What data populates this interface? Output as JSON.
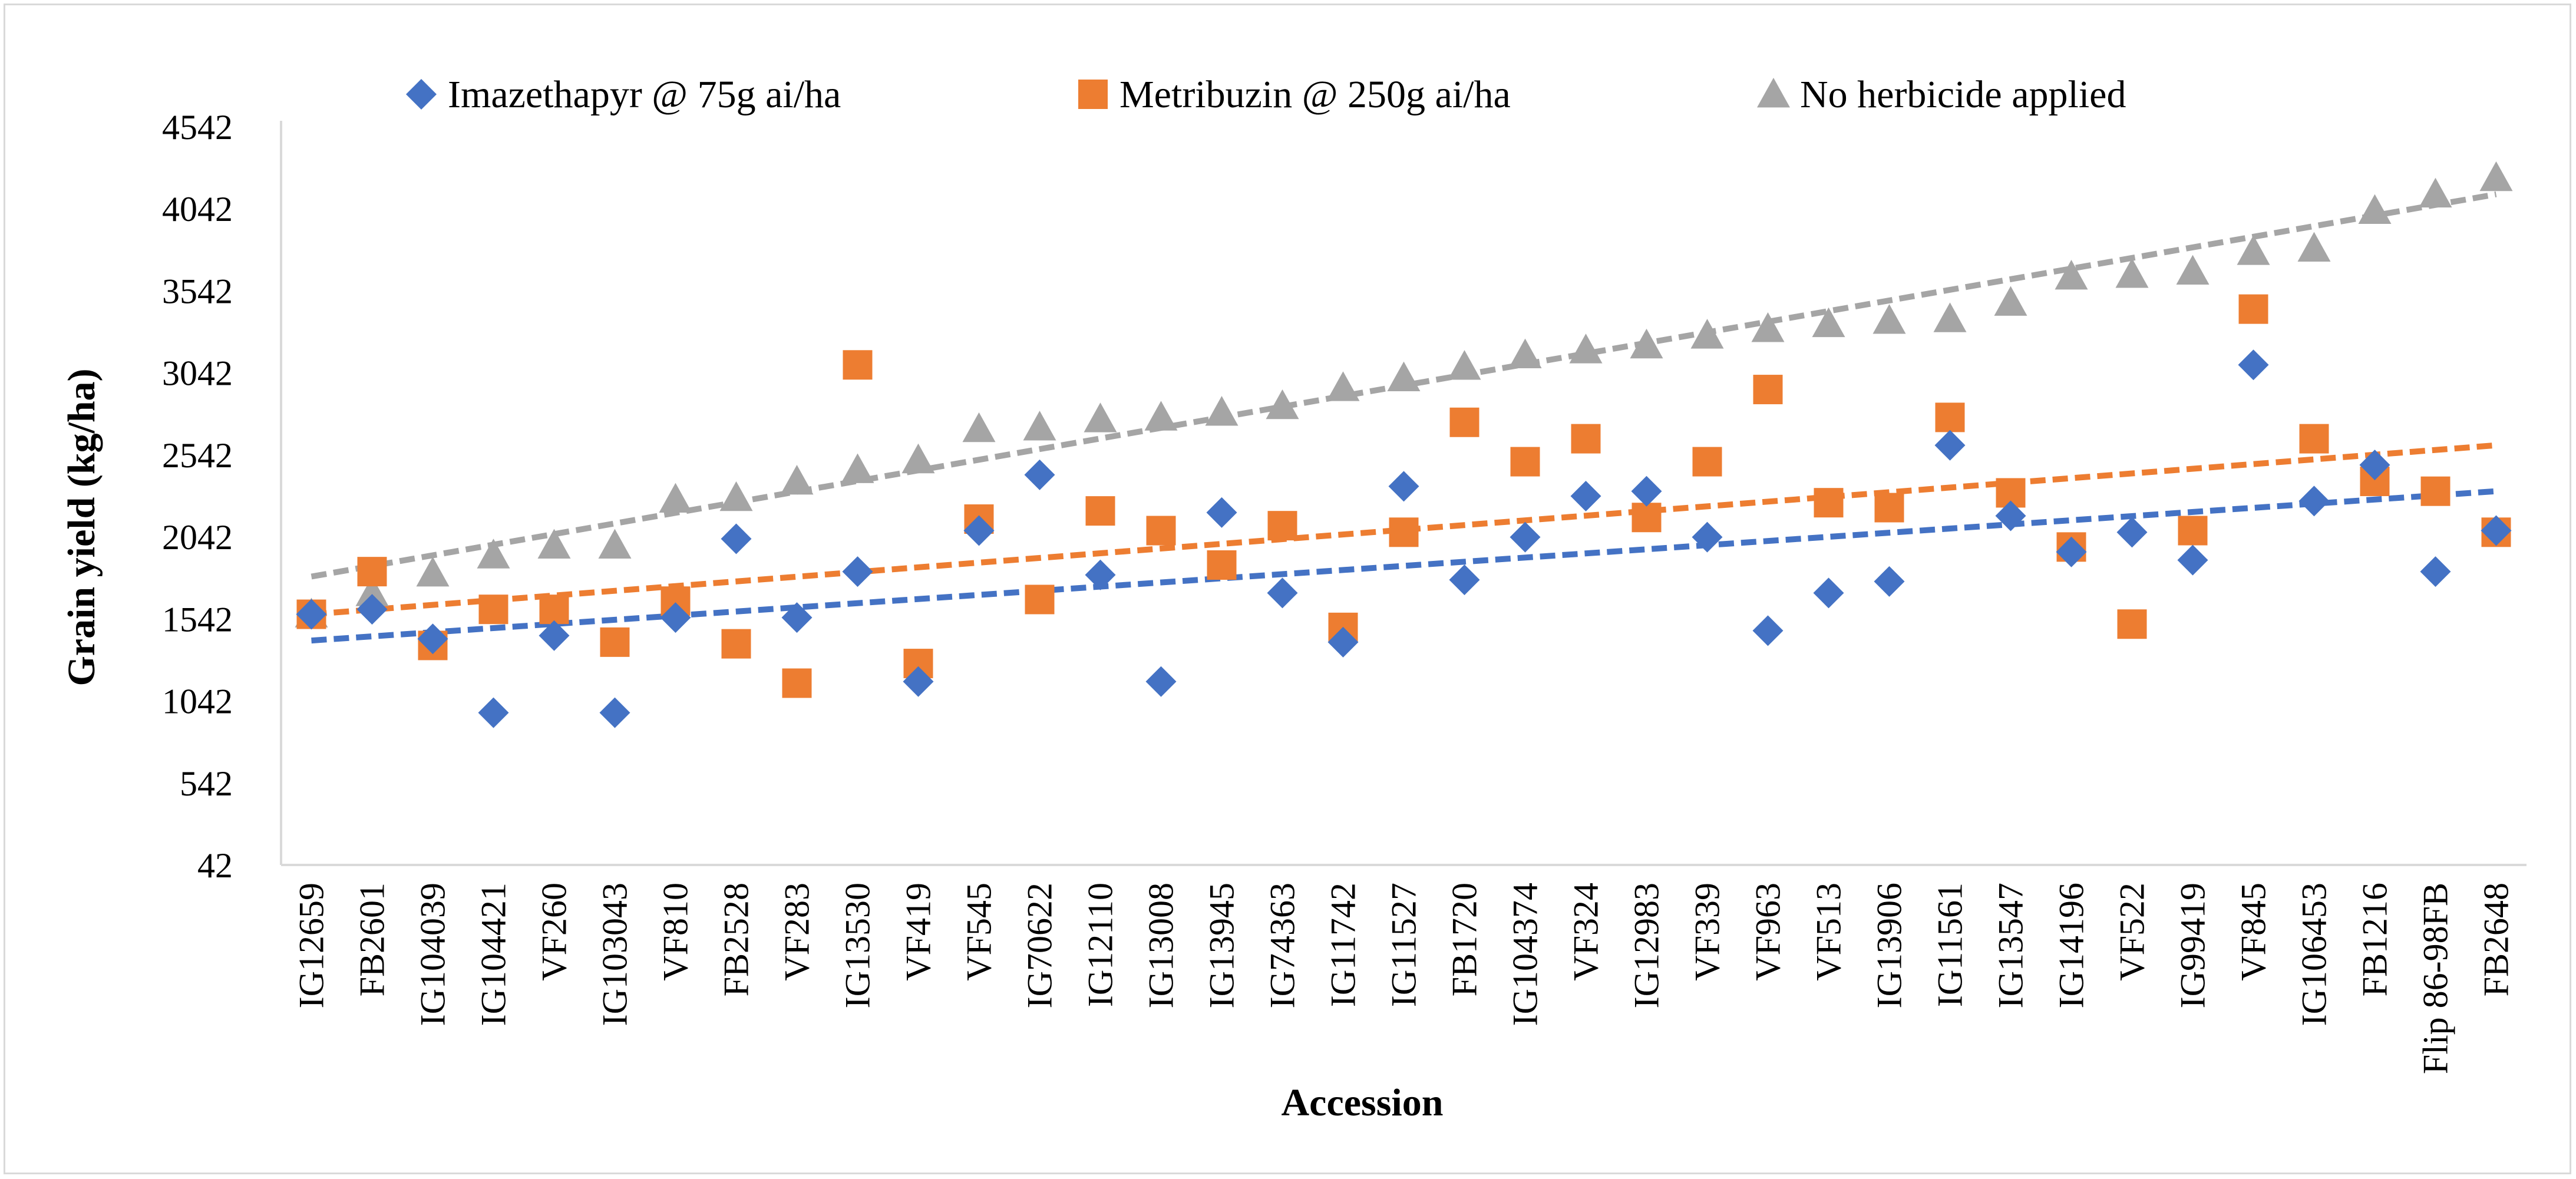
{
  "chart_data": {
    "type": "scatter",
    "title": "",
    "xlabel": "Accession",
    "ylabel": "Grain yield (kg/ha)",
    "ylim": [
      42,
      4542
    ],
    "yticks": [
      "42",
      "542",
      "1042",
      "1542",
      "2042",
      "2542",
      "3042",
      "3542",
      "4042",
      "4542"
    ],
    "grid": false,
    "legend_position": "top",
    "categories": [
      "IG12659",
      "FB2601",
      "IG104039",
      "IG104421",
      "VF260",
      "IG103043",
      "VF810",
      "FB2528",
      "VF283",
      "IG13530",
      "VF419",
      "VF545",
      "IG70622",
      "IG12110",
      "IG13008",
      "IG13945",
      "IG74363",
      "IG11742",
      "IG11527",
      "FB1720",
      "IG104374",
      "VF324",
      "IG12983",
      "VF339",
      "VF963",
      "VF513",
      "IG13906",
      "IG11561",
      "IG13547",
      "IG14196",
      "VF522",
      "IG99419",
      "VF845",
      "IG106453",
      "FB1216",
      "Flip 86-98FB",
      "FB2648"
    ],
    "series": [
      {
        "name": "Imazethapyr @ 75g ai/ha",
        "color": "#4472c4",
        "marker": "diamond",
        "values": [
          1570,
          1600,
          1420,
          970,
          1440,
          970,
          1550,
          2030,
          1550,
          1830,
          1160,
          2080,
          2420,
          1810,
          1160,
          2190,
          1700,
          1400,
          2350,
          1780,
          2040,
          2290,
          2320,
          2040,
          1470,
          1700,
          1770,
          2600,
          2170,
          1950,
          2070,
          1900,
          3090,
          2260,
          2480,
          1830,
          2080
        ],
        "trend": [
          1410,
          2320
        ]
      },
      {
        "name": "Metribuzin @ 250g ai/ha",
        "color": "#ed7d31",
        "marker": "square",
        "values": [
          1570,
          1830,
          1380,
          1600,
          1600,
          1400,
          1650,
          1390,
          1150,
          3090,
          1270,
          2150,
          1660,
          2200,
          2080,
          1870,
          2110,
          1490,
          2070,
          2740,
          2500,
          2640,
          2160,
          2500,
          2940,
          2250,
          2220,
          2770,
          2310,
          1980,
          1510,
          2080,
          3430,
          2640,
          2380,
          2320,
          2070
        ],
        "trend": [
          1570,
          2600
        ]
      },
      {
        "name": "No herbicide applied",
        "color": "#a5a5a5",
        "marker": "triangle",
        "values": [
          1570,
          1700,
          1820,
          1930,
          1990,
          1990,
          2270,
          2280,
          2380,
          2450,
          2510,
          2700,
          2710,
          2760,
          2770,
          2800,
          2840,
          2950,
          3010,
          3080,
          3150,
          3180,
          3210,
          3270,
          3310,
          3340,
          3360,
          3370,
          3470,
          3630,
          3640,
          3660,
          3780,
          3800,
          4030,
          4130,
          4230
        ],
        "trend": [
          1800,
          4130
        ]
      }
    ]
  }
}
